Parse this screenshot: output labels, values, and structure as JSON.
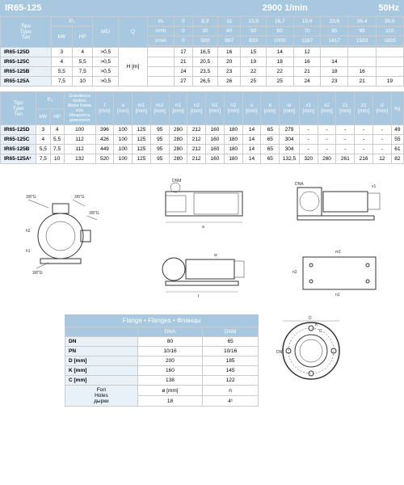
{
  "header": {
    "title": "IR65-125",
    "speed": "2900 1/min",
    "hz": "50Hz"
  },
  "table1": {
    "col_type": "Tipo\nType\nТип",
    "p2": "P₂",
    "kw": "kW",
    "hp": "HP",
    "mei": "MEI",
    "q": "Q",
    "ls": "l/s",
    "m3h": "m³/h",
    "lmin": "l/min",
    "hm": "H [m]",
    "ls_vals": [
      "0",
      "8,3",
      "11",
      "13,9",
      "16,7",
      "19,4",
      "23,6",
      "26,4",
      "30,6"
    ],
    "m3h_vals": [
      "0",
      "30",
      "40",
      "50",
      "60",
      "70",
      "85",
      "95",
      "110"
    ],
    "lmin_vals": [
      "0",
      "500",
      "667",
      "833",
      "1000",
      "1167",
      "1417",
      "1583",
      "1833"
    ],
    "rows": [
      {
        "t": "IR65-125D",
        "kw": "3",
        "hp": "4",
        "mei": ">0,5",
        "h": [
          "17",
          "16,5",
          "16",
          "15",
          "14",
          "12",
          "",
          "",
          ""
        ]
      },
      {
        "t": "IR65-125C",
        "kw": "4",
        "hp": "5,5",
        "mei": ">0,5",
        "h": [
          "21",
          "20,5",
          "20",
          "19",
          "18",
          "16",
          "14",
          "",
          ""
        ]
      },
      {
        "t": "IR65-125B",
        "kw": "5,5",
        "hp": "7,5",
        "mei": ">0,5",
        "h": [
          "24",
          "23,5",
          "23",
          "22",
          "22",
          "21",
          "18",
          "16",
          ""
        ]
      },
      {
        "t": "IR65-125A",
        "kw": "7,5",
        "hp": "10",
        "mei": ">0,5",
        "h": [
          "27",
          "26,5",
          "26",
          "25",
          "25",
          "24",
          "23",
          "21",
          "19"
        ]
      }
    ]
  },
  "table2": {
    "col_type": "Tipo\nType\nТип",
    "p2": "P₂",
    "kw": "kW",
    "hp": "HP",
    "motor": "Grandezza\nmotore\nMotor frame\nsize\nМощность\nдвигателя",
    "cols": [
      "f\n[mm]",
      "a\n[mm]",
      "m1\n[mm]",
      "m2\n[mm]",
      "n1\n[mm]",
      "n2\n[mm]",
      "h1\n[mm]",
      "h2\n[mm]",
      "s\n[mm]",
      "b\n[mm]",
      "w\n[mm]",
      "x1\n[mm]",
      "x2\n[mm]",
      "z1\n[mm]",
      "z2\n[mm]",
      "d\n[mm]",
      "kg"
    ],
    "rows": [
      {
        "t": "IR65-125D",
        "kw": "3",
        "hp": "4",
        "m": "100",
        "v": [
          "396",
          "100",
          "125",
          "95",
          "280",
          "212",
          "160",
          "180",
          "14",
          "65",
          "279",
          "-",
          "-",
          "-",
          "-",
          "-",
          "49"
        ]
      },
      {
        "t": "IR65-125C",
        "kw": "4",
        "hp": "5,5",
        "m": "112",
        "v": [
          "426",
          "100",
          "125",
          "95",
          "280",
          "212",
          "160",
          "180",
          "14",
          "65",
          "304",
          "-",
          "-",
          "-",
          "-",
          "-",
          "55"
        ]
      },
      {
        "t": "IR65-125B",
        "kw": "5,5",
        "hp": "7,5",
        "m": "112",
        "v": [
          "449",
          "100",
          "125",
          "95",
          "280",
          "212",
          "160",
          "180",
          "14",
          "65",
          "304",
          "-",
          "-",
          "-",
          "-",
          "-",
          "61"
        ]
      },
      {
        "t": "IR65-125A¹",
        "kw": "7,5",
        "hp": "10",
        "m": "132",
        "v": [
          "520",
          "100",
          "125",
          "95",
          "280",
          "212",
          "160",
          "180",
          "14",
          "65",
          "132,5",
          "320",
          "280",
          "261",
          "216",
          "12",
          "82"
        ]
      }
    ]
  },
  "flange": {
    "title": "Flange • Flanges • Фланцы",
    "dna": "DNA",
    "dnm": "DNM",
    "rows": [
      {
        "l": "DN",
        "a": "80",
        "m": "65"
      },
      {
        "l": "PN",
        "a": "10/16",
        "m": "10/16"
      },
      {
        "l": "D [mm]",
        "a": "200",
        "m": "185"
      },
      {
        "l": "K [mm]",
        "a": "160",
        "m": "145"
      },
      {
        "l": "C [mm]",
        "a": "138",
        "m": "122"
      }
    ],
    "fori": "Fori\nHoles\nдырки",
    "phi": "ø [mm]",
    "n": "n",
    "fori_vals": {
      "a_phi": "18",
      "a_n": "4¹",
      "m_phi": "18",
      "m_n": "4"
    }
  },
  "labels": {
    "g38": "3/8\"G",
    "h1": "h1",
    "h2": "h2",
    "dnm": "DNM",
    "dna": "DNA",
    "D": "D",
    "K": "K",
    "C": "C",
    "DN": "DN"
  },
  "colors": {
    "header": "#a8c8e0",
    "border": "#ccc"
  }
}
